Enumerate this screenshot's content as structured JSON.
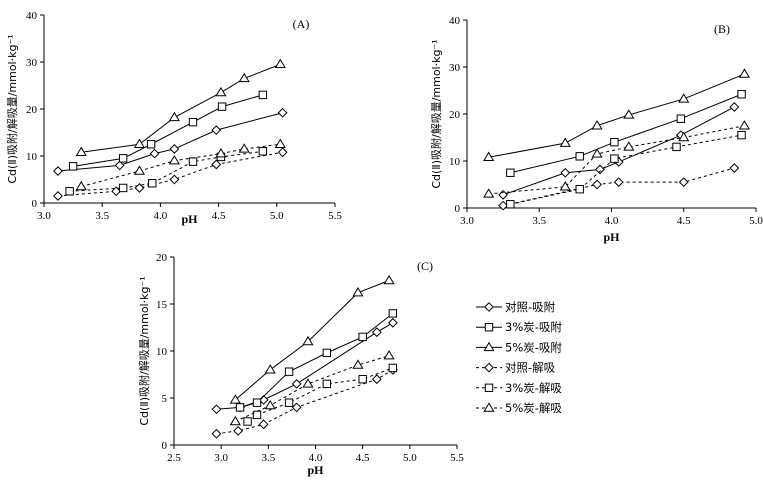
{
  "legend": [
    {
      "label": "对照-吸附",
      "marker": "diamond",
      "dash": false
    },
    {
      "label": "3%炭-吸附",
      "marker": "square",
      "dash": false
    },
    {
      "label": "5%炭-吸附",
      "marker": "triangle",
      "dash": false
    },
    {
      "label": "对照-解吸",
      "marker": "diamond",
      "dash": true
    },
    {
      "label": "3%炭-解吸",
      "marker": "square",
      "dash": true
    },
    {
      "label": "5%炭-解吸",
      "marker": "triangle",
      "dash": true
    }
  ],
  "chart_data": [
    {
      "type": "line",
      "panel": "(A)",
      "xlabel": "pH",
      "ylabel": "Cd(Ⅱ)吸附/解吸量/mmol·kg⁻¹",
      "xlim": [
        3.0,
        5.5
      ],
      "ylim": [
        0,
        40
      ],
      "xticks": [
        "3.0",
        "3.5",
        "4.0",
        "4.5",
        "5.0",
        "5.5"
      ],
      "yticks": [
        "0",
        "10",
        "20",
        "30",
        "40"
      ],
      "series": [
        {
          "name": "对照-吸附",
          "x": [
            3.12,
            3.65,
            3.95,
            4.12,
            4.48,
            5.05
          ],
          "y": [
            6.8,
            8.0,
            10.5,
            11.5,
            15.5,
            19.2
          ]
        },
        {
          "name": "3%炭-吸附",
          "x": [
            3.25,
            3.68,
            3.92,
            4.28,
            4.53,
            4.88
          ],
          "y": [
            7.8,
            9.5,
            12.5,
            17.2,
            20.5,
            23.0
          ]
        },
        {
          "name": "5%炭-吸附",
          "x": [
            3.32,
            3.82,
            4.12,
            4.52,
            4.72,
            5.03
          ],
          "y": [
            10.8,
            12.5,
            18.2,
            23.5,
            26.5,
            29.5
          ]
        },
        {
          "name": "对照-解吸",
          "x": [
            3.12,
            3.62,
            3.82,
            4.12,
            4.48,
            5.05
          ],
          "y": [
            1.5,
            2.5,
            3.2,
            5.0,
            8.2,
            10.8
          ]
        },
        {
          "name": "3%炭-解吸",
          "x": [
            3.22,
            3.68,
            3.93,
            4.28,
            4.52,
            4.88
          ],
          "y": [
            2.5,
            3.2,
            4.2,
            8.8,
            9.8,
            11.0
          ]
        },
        {
          "name": "5%炭-解吸",
          "x": [
            3.32,
            3.82,
            4.12,
            4.52,
            4.72,
            5.03
          ],
          "y": [
            3.5,
            6.8,
            9.0,
            10.5,
            11.5,
            12.5
          ]
        }
      ]
    },
    {
      "type": "line",
      "panel": "(B)",
      "xlabel": "pH",
      "ylabel": "Cd(Ⅱ)吸附/解吸量/mmol·kg⁻¹",
      "xlim": [
        3.0,
        5.0
      ],
      "ylim": [
        0,
        40
      ],
      "xticks": [
        "3.0",
        "3.5",
        "4.0",
        "4.5",
        "5.0"
      ],
      "yticks": [
        "0",
        "10",
        "20",
        "30",
        "40"
      ],
      "series": [
        {
          "name": "对照-吸附",
          "x": [
            3.25,
            3.68,
            3.92,
            4.05,
            4.48,
            4.85
          ],
          "y": [
            2.8,
            7.5,
            8.2,
            9.8,
            15.5,
            21.5
          ]
        },
        {
          "name": "3%炭-吸附",
          "x": [
            3.3,
            3.78,
            4.02,
            4.48,
            4.9
          ],
          "y": [
            7.5,
            11.0,
            14.0,
            19.0,
            24.2
          ]
        },
        {
          "name": "5%炭-吸附",
          "x": [
            3.15,
            3.68,
            3.9,
            4.12,
            4.5,
            4.92
          ],
          "y": [
            10.8,
            13.8,
            17.5,
            19.8,
            23.2,
            28.5
          ]
        },
        {
          "name": "对照-解吸",
          "x": [
            3.25,
            3.9,
            4.05,
            4.5,
            4.85
          ],
          "y": [
            0.5,
            5.0,
            5.5,
            5.5,
            8.5
          ]
        },
        {
          "name": "3%炭-解吸",
          "x": [
            3.3,
            3.78,
            4.02,
            4.45,
            4.9
          ],
          "y": [
            0.8,
            4.0,
            10.5,
            13.0,
            15.5
          ]
        },
        {
          "name": "5%炭-解吸",
          "x": [
            3.15,
            3.68,
            3.9,
            4.12,
            4.5,
            4.92
          ],
          "y": [
            3.0,
            4.5,
            11.5,
            13.0,
            15.0,
            17.5
          ]
        }
      ]
    },
    {
      "type": "line",
      "panel": "(C)",
      "xlabel": "pH",
      "ylabel": "Cd(Ⅱ)吸附/解吸量/mmol·kg⁻¹",
      "xlim": [
        2.5,
        5.5
      ],
      "ylim": [
        0,
        20
      ],
      "xticks": [
        "2.5",
        "3.0",
        "3.5",
        "4.0",
        "4.5",
        "5.0",
        "5.5"
      ],
      "yticks": [
        "0",
        "5",
        "10",
        "15",
        "20"
      ],
      "series": [
        {
          "name": "对照-吸附",
          "x": [
            2.95,
            3.2,
            3.45,
            3.8,
            4.65,
            4.82
          ],
          "y": [
            3.8,
            4.0,
            4.8,
            6.5,
            12.0,
            13.0
          ]
        },
        {
          "name": "3%炭-吸附",
          "x": [
            3.2,
            3.38,
            3.72,
            4.12,
            4.5,
            4.82
          ],
          "y": [
            4.0,
            4.5,
            7.8,
            9.8,
            11.5,
            14.0
          ]
        },
        {
          "name": "5%炭-吸附",
          "x": [
            3.15,
            3.52,
            3.92,
            4.45,
            4.78
          ],
          "y": [
            4.8,
            8.0,
            11.0,
            16.2,
            17.5
          ]
        },
        {
          "name": "对照-解吸",
          "x": [
            2.95,
            3.18,
            3.45,
            3.8,
            4.65,
            4.82
          ],
          "y": [
            1.2,
            1.5,
            2.2,
            4.0,
            7.0,
            8.0
          ]
        },
        {
          "name": "3%炭-解吸",
          "x": [
            3.28,
            3.38,
            3.72,
            4.12,
            4.5,
            4.82
          ],
          "y": [
            2.5,
            3.2,
            4.5,
            6.5,
            7.0,
            8.2
          ]
        },
        {
          "name": "5%炭-解吸",
          "x": [
            3.15,
            3.52,
            3.92,
            4.45,
            4.78
          ],
          "y": [
            2.5,
            4.2,
            6.5,
            8.5,
            9.5
          ]
        }
      ]
    }
  ]
}
